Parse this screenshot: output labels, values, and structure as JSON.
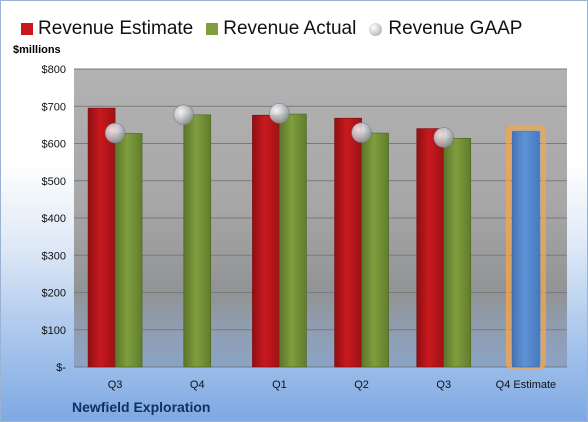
{
  "legend": {
    "estimate": "Revenue Estimate",
    "actual": "Revenue Actual",
    "gaap": "Revenue GAAP"
  },
  "unit_label": "$millions",
  "company": "Newfield Exploration",
  "colors": {
    "estimate": "#c9191e",
    "actual": "#7f9e3e",
    "future": "#5f93d6",
    "gaap": "#c4c7cc",
    "plot_bg": "#b2b2b2"
  },
  "chart_data": {
    "type": "bar",
    "categories": [
      "Q3",
      "Q4",
      "Q1",
      "Q2",
      "Q3",
      "Q4 Estimate"
    ],
    "series": [
      {
        "name": "Revenue Estimate",
        "values": [
          695,
          null,
          676,
          668,
          640,
          632
        ]
      },
      {
        "name": "Revenue Actual",
        "values": [
          627,
          677,
          679,
          628,
          614,
          null
        ]
      },
      {
        "name": "Revenue GAAP",
        "values": [
          628,
          677,
          681,
          629,
          616,
          null
        ]
      }
    ],
    "yticks": [
      "$-",
      "$100",
      "$200",
      "$300",
      "$400",
      "$500",
      "$600",
      "$700",
      "$800"
    ],
    "ylabel": "$millions",
    "ylim": [
      0,
      800
    ],
    "grid": true,
    "legend_position": "top"
  }
}
